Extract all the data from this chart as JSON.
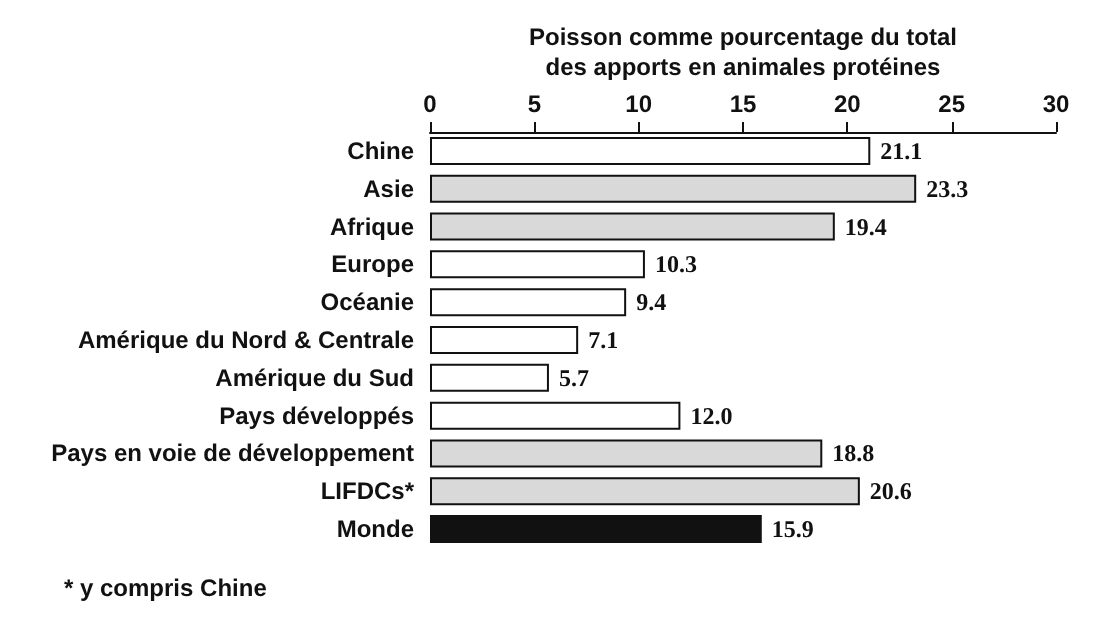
{
  "chart_data": {
    "type": "bar",
    "orientation": "horizontal",
    "xlabel": "Poisson comme pourcentage du total des apports en animales protéines",
    "categories": [
      "Chine",
      "Asie",
      "Afrique",
      "Europe",
      "Océanie",
      "Amérique du Nord & Centrale",
      "Amérique du Sud",
      "Pays développés",
      "Pays en voie de développement",
      "LIFDCs*",
      "Monde"
    ],
    "values": [
      21.1,
      23.3,
      19.4,
      10.3,
      9.4,
      7.1,
      5.7,
      12.0,
      18.8,
      20.6,
      15.9
    ],
    "value_labels": [
      "21.1",
      "23.3",
      "19.4",
      "10.3",
      "9.4",
      "7.1",
      "5.7",
      "12.0",
      "18.8",
      "20.6",
      "15.9"
    ],
    "colors": [
      "#ffffff",
      "#d9d9d9",
      "#d9d9d9",
      "#ffffff",
      "#ffffff",
      "#ffffff",
      "#ffffff",
      "#ffffff",
      "#d9d9d9",
      "#d9d9d9",
      "#111111"
    ],
    "xlim": [
      0,
      30
    ],
    "xticks": [
      0,
      5,
      10,
      15,
      20,
      25,
      30
    ],
    "grid": false,
    "annotations": [
      "* y compris Chine"
    ]
  }
}
